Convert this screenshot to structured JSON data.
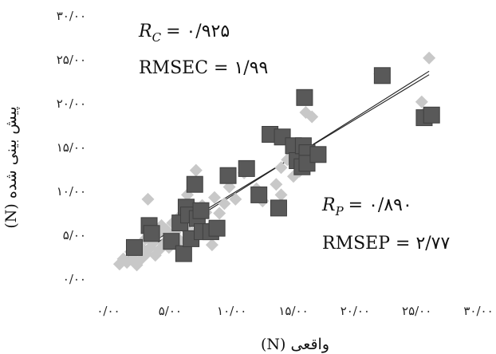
{
  "chart_data": {
    "type": "scatter",
    "xlabel": "واقعی (N)",
    "ylabel": "پیش بینی شده (N)",
    "xlim": [
      0,
      30
    ],
    "ylim": [
      0,
      30
    ],
    "x_ticks": [
      "۰/۰۰",
      "۵/۰۰",
      "۱۰/۰۰",
      "۱۵/۰۰",
      "۲۰/۰۰",
      "۲۵/۰۰",
      "۳۰/۰۰"
    ],
    "y_ticks": [
      "۰/۰۰",
      "۵/۰۰",
      "۱۰/۰۰",
      "۱۵/۰۰",
      "۲۰/۰۰",
      "۲۵/۰۰",
      "۳۰/۰۰"
    ],
    "grid": false,
    "legend": "none",
    "series": [
      {
        "marker": "diamond",
        "color": "#c8c8c8",
        "points": [
          [
            0.9,
            1.7
          ],
          [
            1.2,
            2.3
          ],
          [
            1.5,
            1.9
          ],
          [
            1.8,
            3.1
          ],
          [
            2.0,
            2.4
          ],
          [
            2.3,
            1.6
          ],
          [
            2.5,
            3.8
          ],
          [
            2.6,
            2.2
          ],
          [
            2.8,
            3.4
          ],
          [
            3.0,
            4.6
          ],
          [
            3.1,
            2.9
          ],
          [
            3.2,
            9.1
          ],
          [
            3.4,
            3.6
          ],
          [
            3.6,
            4.1
          ],
          [
            3.8,
            2.7
          ],
          [
            4.0,
            5.2
          ],
          [
            4.1,
            3.3
          ],
          [
            4.3,
            6.1
          ],
          [
            4.5,
            4.0
          ],
          [
            4.7,
            5.6
          ],
          [
            4.9,
            3.6
          ],
          [
            5.0,
            4.9
          ],
          [
            5.2,
            6.4
          ],
          [
            5.4,
            5.3
          ],
          [
            5.6,
            6.9
          ],
          [
            5.8,
            4.4
          ],
          [
            6.0,
            7.2
          ],
          [
            6.2,
            5.8
          ],
          [
            6.4,
            9.6
          ],
          [
            6.6,
            6.5
          ],
          [
            6.8,
            5.2
          ],
          [
            7.0,
            8.1
          ],
          [
            7.1,
            12.4
          ],
          [
            7.3,
            6.9
          ],
          [
            7.6,
            8.4
          ],
          [
            7.9,
            7.6
          ],
          [
            8.2,
            5.9
          ],
          [
            8.4,
            3.9
          ],
          [
            8.6,
            9.3
          ],
          [
            9.0,
            7.5
          ],
          [
            9.4,
            8.6
          ],
          [
            9.8,
            10.5
          ],
          [
            10.3,
            9.1
          ],
          [
            11.0,
            12.1
          ],
          [
            12.0,
            10.3
          ],
          [
            12.5,
            8.9
          ],
          [
            13.6,
            10.8
          ],
          [
            14.0,
            12.7
          ],
          [
            14.0,
            9.6
          ],
          [
            14.5,
            13.6
          ],
          [
            15.0,
            11.7
          ],
          [
            15.5,
            12.3
          ],
          [
            16.0,
            15.2
          ],
          [
            16.5,
            18.5
          ],
          [
            16.0,
            19.0
          ],
          [
            13.1,
            16.3
          ],
          [
            22.0,
            23.4
          ],
          [
            26.0,
            25.2
          ],
          [
            25.6,
            18.9
          ],
          [
            25.4,
            20.2
          ]
        ]
      },
      {
        "marker": "square",
        "color": "#595959",
        "points": [
          [
            2.1,
            3.6
          ],
          [
            3.3,
            6.1
          ],
          [
            3.5,
            5.2
          ],
          [
            5.1,
            4.3
          ],
          [
            5.8,
            6.4
          ],
          [
            6.1,
            2.9
          ],
          [
            6.3,
            8.2
          ],
          [
            6.5,
            7.3
          ],
          [
            6.7,
            4.6
          ],
          [
            7.0,
            10.8
          ],
          [
            7.2,
            6.9
          ],
          [
            7.5,
            7.8
          ],
          [
            7.6,
            5.4
          ],
          [
            8.3,
            5.4
          ],
          [
            8.8,
            5.8
          ],
          [
            9.7,
            11.8
          ],
          [
            11.2,
            12.6
          ],
          [
            12.2,
            9.6
          ],
          [
            13.1,
            16.5
          ],
          [
            13.8,
            8.1
          ],
          [
            14.1,
            16.2
          ],
          [
            15.0,
            15.2
          ],
          [
            15.3,
            13.5
          ],
          [
            15.7,
            12.8
          ],
          [
            15.8,
            15.2
          ],
          [
            15.9,
            20.7
          ],
          [
            16.1,
            14.4
          ],
          [
            16.1,
            13.2
          ],
          [
            17.0,
            14.2
          ],
          [
            22.2,
            23.2
          ],
          [
            25.6,
            18.4
          ],
          [
            26.2,
            18.7
          ]
        ]
      }
    ],
    "fit_lines": [
      {
        "x": [
          1.2,
          26.0
        ],
        "y": [
          1.7,
          23.7
        ]
      },
      {
        "x": [
          1.2,
          26.0
        ],
        "y": [
          2.2,
          23.3
        ]
      }
    ],
    "annotations": {
      "rc_symbol": "R",
      "rc_sub": "C",
      "rc_value": "= ۰/۹۲۵",
      "rmsec": "RMSEC = ۱/۹۹",
      "rp_symbol": "R",
      "rp_sub": "P",
      "rp_value": "= ۰/۸۹۰",
      "rmsep": "RMSEP = ۲/۷۷"
    }
  }
}
